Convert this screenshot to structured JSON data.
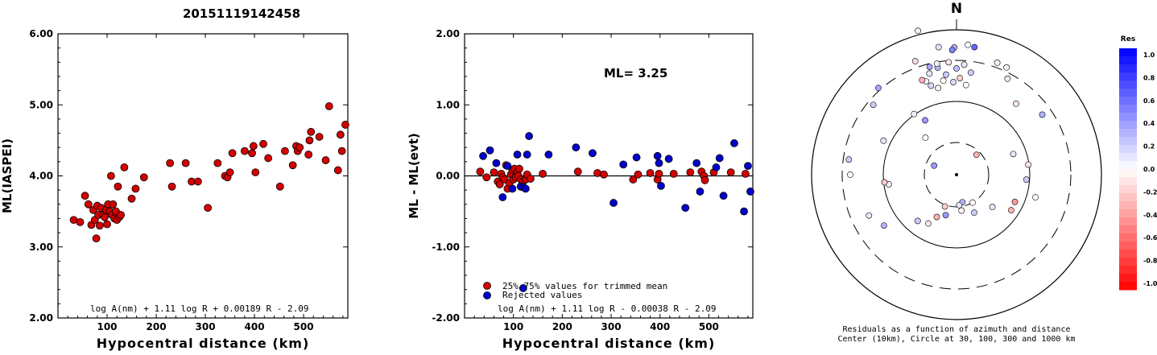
{
  "title": "20151119142458",
  "chart_data": [
    {
      "type": "scatter",
      "xlabel": "Hypocentral distance (km)",
      "ylabel": "ML(IASPEI)",
      "xlim": [
        0,
        590
      ],
      "ylim": [
        2.0,
        6.0
      ],
      "xticks": [
        "100",
        "200",
        "300",
        "400",
        "500"
      ],
      "yticks": [
        "2.00",
        "3.00",
        "4.00",
        "5.00",
        "6.00"
      ],
      "annotation": "log A(nm) + 1.11 log R + 0.00189 R - 2.09",
      "grid": false,
      "series": [
        {
          "color": "#d40000",
          "points": [
            [
              32,
              3.38
            ],
            [
              45,
              3.35
            ],
            [
              55,
              3.72
            ],
            [
              62,
              3.6
            ],
            [
              68,
              3.31
            ],
            [
              72,
              3.52
            ],
            [
              75,
              3.38
            ],
            [
              78,
              3.12
            ],
            [
              80,
              3.58
            ],
            [
              82,
              3.45
            ],
            [
              85,
              3.3
            ],
            [
              88,
              3.55
            ],
            [
              92,
              3.45
            ],
            [
              95,
              3.42
            ],
            [
              98,
              3.52
            ],
            [
              100,
              3.32
            ],
            [
              102,
              3.6
            ],
            [
              105,
              3.5
            ],
            [
              108,
              4.0
            ],
            [
              110,
              3.45
            ],
            [
              112,
              3.6
            ],
            [
              115,
              3.4
            ],
            [
              118,
              3.5
            ],
            [
              120,
              3.38
            ],
            [
              122,
              3.85
            ],
            [
              125,
              3.42
            ],
            [
              128,
              3.45
            ],
            [
              135,
              4.12
            ],
            [
              150,
              3.68
            ],
            [
              158,
              3.82
            ],
            [
              175,
              3.98
            ],
            [
              228,
              4.18
            ],
            [
              232,
              3.85
            ],
            [
              260,
              4.18
            ],
            [
              272,
              3.92
            ],
            [
              285,
              3.92
            ],
            [
              305,
              3.55
            ],
            [
              325,
              4.18
            ],
            [
              340,
              4.0
            ],
            [
              345,
              3.98
            ],
            [
              350,
              4.05
            ],
            [
              355,
              4.32
            ],
            [
              380,
              4.35
            ],
            [
              395,
              4.32
            ],
            [
              398,
              4.42
            ],
            [
              402,
              4.05
            ],
            [
              418,
              4.45
            ],
            [
              428,
              4.25
            ],
            [
              452,
              3.85
            ],
            [
              462,
              4.35
            ],
            [
              478,
              4.15
            ],
            [
              485,
              4.42
            ],
            [
              488,
              4.35
            ],
            [
              492,
              4.4
            ],
            [
              510,
              4.3
            ],
            [
              512,
              4.5
            ],
            [
              515,
              4.62
            ],
            [
              532,
              4.55
            ],
            [
              545,
              4.22
            ],
            [
              552,
              4.98
            ],
            [
              570,
              4.08
            ],
            [
              575,
              4.58
            ],
            [
              578,
              4.35
            ],
            [
              585,
              4.72
            ]
          ]
        }
      ]
    },
    {
      "type": "scatter",
      "xlabel": "Hypocentral distance (km)",
      "ylabel": "ML - ML(evt)",
      "xlim": [
        0,
        590
      ],
      "ylim": [
        -2.0,
        2.0
      ],
      "xticks": [
        "100",
        "200",
        "300",
        "400",
        "500"
      ],
      "yticks": [
        "-2.00",
        "-1.00",
        "0.00",
        "1.00",
        "2.00"
      ],
      "label": "ML= 3.25",
      "annotation": "log A(nm) + 1.11 log R - 0.00038 R - 2.09",
      "legend": [
        "25%-75% values for trimmed mean",
        "Rejected values"
      ],
      "legend_position": "bottom-left",
      "series": [
        {
          "name": "25%-75% values for trimmed mean",
          "color": "#d40000",
          "points": [
            [
              32,
              0.06
            ],
            [
              45,
              -0.02
            ],
            [
              60,
              0.05
            ],
            [
              68,
              -0.08
            ],
            [
              72,
              -0.12
            ],
            [
              75,
              0.03
            ],
            [
              78,
              -0.02
            ],
            [
              82,
              -0.05
            ],
            [
              85,
              0.15
            ],
            [
              88,
              -0.18
            ],
            [
              92,
              -0.1
            ],
            [
              95,
              0.02
            ],
            [
              98,
              0.08
            ],
            [
              100,
              -0.05
            ],
            [
              102,
              0.1
            ],
            [
              105,
              -0.02
            ],
            [
              108,
              0.06
            ],
            [
              110,
              0.0
            ],
            [
              112,
              0.1
            ],
            [
              115,
              -0.05
            ],
            [
              118,
              -0.12
            ],
            [
              120,
              -0.08
            ],
            [
              125,
              -0.05
            ],
            [
              128,
              0.02
            ],
            [
              135,
              -0.04
            ],
            [
              160,
              0.03
            ],
            [
              232,
              0.06
            ],
            [
              272,
              0.04
            ],
            [
              285,
              0.02
            ],
            [
              345,
              -0.05
            ],
            [
              355,
              0.02
            ],
            [
              380,
              0.04
            ],
            [
              395,
              -0.05
            ],
            [
              398,
              0.03
            ],
            [
              428,
              0.03
            ],
            [
              462,
              0.05
            ],
            [
              485,
              0.06
            ],
            [
              490,
              0.0
            ],
            [
              492,
              -0.06
            ],
            [
              510,
              0.05
            ],
            [
              545,
              0.05
            ],
            [
              575,
              0.03
            ]
          ]
        },
        {
          "name": "Rejected values",
          "color": "#0000cc",
          "points": [
            [
              38,
              0.28
            ],
            [
              52,
              0.36
            ],
            [
              65,
              0.18
            ],
            [
              78,
              -0.3
            ],
            [
              88,
              0.14
            ],
            [
              98,
              -0.18
            ],
            [
              108,
              0.3
            ],
            [
              115,
              -0.15
            ],
            [
              120,
              -0.16
            ],
            [
              125,
              -0.18
            ],
            [
              128,
              0.3
            ],
            [
              132,
              0.56
            ],
            [
              172,
              0.3
            ],
            [
              228,
              0.4
            ],
            [
              262,
              0.32
            ],
            [
              305,
              -0.38
            ],
            [
              325,
              0.16
            ],
            [
              352,
              0.26
            ],
            [
              395,
              0.28
            ],
            [
              398,
              0.18
            ],
            [
              402,
              -0.14
            ],
            [
              418,
              0.24
            ],
            [
              452,
              -0.45
            ],
            [
              475,
              0.18
            ],
            [
              482,
              -0.22
            ],
            [
              515,
              0.12
            ],
            [
              522,
              0.25
            ],
            [
              530,
              -0.28
            ],
            [
              552,
              0.46
            ],
            [
              572,
              -0.5
            ],
            [
              580,
              0.14
            ],
            [
              585,
              -0.22
            ]
          ]
        },
        {
          "name": "",
          "color": "#0000cc",
          "points": [
            [
              120,
              -1.58
            ]
          ]
        }
      ]
    },
    {
      "type": "scatter",
      "subtype": "polar",
      "north_label": "N",
      "caption_line1": "Residuals as a function of azimuth and distance",
      "caption_line2": "Center (10km), Circle at 30, 100, 300 and 1000 km",
      "legend_title": "Res",
      "colorbar_ticks": [
        "1.0",
        "0.8",
        "0.6",
        "0.4",
        "0.2",
        "0.0",
        "-0.2",
        "-0.4",
        "-0.6",
        "-0.8",
        "-1.0"
      ],
      "series": [
        {
          "name": "stations",
          "points": [
            [
              -18,
              122,
              0.05
            ],
            [
              -15,
              130,
              0.1
            ],
            [
              -12,
              110,
              -0.05
            ],
            [
              -10,
              135,
              0.3
            ],
            [
              -8,
              118,
              0.0
            ],
            [
              -6,
              125,
              0.2
            ],
            [
              -4,
              140,
              -0.1
            ],
            [
              -2,
              115,
              0.15
            ],
            [
              0,
              132,
              0.25
            ],
            [
              2,
              120,
              -0.2
            ],
            [
              4,
              137,
              0.1
            ],
            [
              6,
              112,
              0.0
            ],
            [
              8,
              128,
              0.2
            ],
            [
              -14,
              138,
              0.35
            ],
            [
              -20,
              125,
              -0.3
            ],
            [
              -16,
              115,
              0.15
            ],
            [
              -1,
              158,
              0.3
            ],
            [
              25,
              147,
              0.05
            ],
            [
              28,
              135,
              0.1
            ],
            [
              -68,
              30,
              0.4
            ],
            [
              -40,
              60,
              0.0
            ],
            [
              -30,
              78,
              0.4
            ],
            [
              -10,
              140,
              0.05
            ],
            [
              45,
              35,
              -0.3
            ],
            [
              40,
              115,
              -0.1
            ],
            [
              55,
              130,
              0.3
            ],
            [
              70,
              75,
              0.1
            ],
            [
              82,
              90,
              -0.1
            ],
            [
              94,
              87,
              0.2
            ],
            [
              106,
              102,
              0.0
            ],
            [
              115,
              80,
              -0.4
            ],
            [
              123,
              81,
              -0.3
            ],
            [
              132,
              60,
              0.1
            ],
            [
              150,
              40,
              0.0
            ],
            [
              155,
              52,
              0.2
            ],
            [
              168,
              35,
              0.3
            ],
            [
              172,
              45,
              -0.05
            ],
            [
              175,
              38,
              0.1
            ],
            [
              195,
              52,
              0.4
            ],
            [
              200,
              42,
              -0.2
            ],
            [
              205,
              58,
              -0.3
            ],
            [
              210,
              70,
              -0.1
            ],
            [
              220,
              75,
              0.2
            ],
            [
              235,
              110,
              0.3
            ],
            [
              245,
              120,
              0.1
            ],
            [
              262,
              85,
              0.05
            ],
            [
              264,
              90,
              -0.2
            ],
            [
              270,
              132,
              0.0
            ],
            [
              278,
              135,
              0.2
            ],
            [
              295,
              100,
              0.1
            ],
            [
              310,
              135,
              0.2
            ],
            [
              318,
              145,
              0.35
            ],
            [
              325,
              92,
              0.05
            ],
            [
              340,
              150,
              -0.15
            ],
            [
              345,
              185,
              0.05
            ],
            [
              352,
              160,
              0.1
            ],
            [
              358,
              155,
              0.5
            ],
            [
              5,
              162,
              0.0
            ],
            [
              8,
              160,
              0.6
            ],
            [
              20,
              148,
              0.05
            ]
          ]
        }
      ]
    }
  ]
}
